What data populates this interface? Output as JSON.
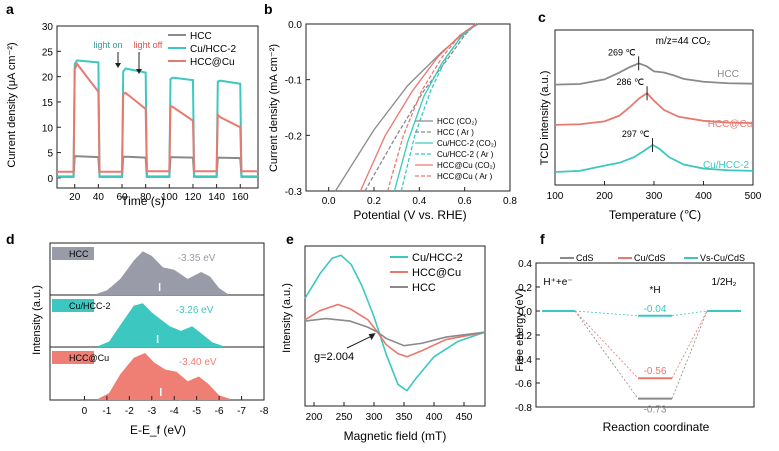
{
  "colors": {
    "gray": "#8a8a8a",
    "cyan": "#3cc8c0",
    "red": "#e8796f",
    "dos_gray": "#9a9ba8",
    "dos_cyan": "#3cc8c0",
    "dos_red": "#ef7e74"
  },
  "chart_data": [
    {
      "id": "a",
      "panel_label": "a",
      "type": "line",
      "title": "",
      "xlabel": "Time (s)",
      "ylabel": "Current density (μA cm⁻²)",
      "xlim": [
        5,
        175
      ],
      "ylim": [
        -2,
        30
      ],
      "xticks": [
        "20",
        "40",
        "60",
        "80",
        "100",
        "120",
        "140",
        "160"
      ],
      "yticks": [
        "0",
        "5",
        "10",
        "15",
        "20",
        "25",
        "30"
      ],
      "annotations": [
        "light on",
        "light off"
      ],
      "series": [
        {
          "name": "HCC",
          "color_key": "gray",
          "x": [
            5,
            19,
            20,
            40,
            41,
            60,
            61,
            80,
            81,
            100,
            101,
            120,
            121,
            140,
            141,
            160,
            161,
            175
          ],
          "y": [
            0.2,
            0.2,
            4.3,
            4.1,
            0.2,
            0.2,
            4.2,
            4.0,
            0.2,
            0.2,
            4.1,
            4.0,
            0.2,
            0.2,
            4.0,
            3.9,
            0.2,
            0.2
          ]
        },
        {
          "name": "Cu/HCC-2",
          "color_key": "cyan",
          "x": [
            5,
            19,
            20,
            22,
            40,
            41,
            60,
            61,
            63,
            80,
            81,
            100,
            101,
            103,
            120,
            121,
            140,
            141,
            143,
            160,
            161,
            175
          ],
          "y": [
            0.3,
            0.3,
            22.5,
            23.2,
            22.8,
            0.3,
            0.3,
            21.0,
            21.6,
            20.8,
            0.3,
            0.3,
            19.5,
            19.8,
            19.3,
            0.3,
            0.3,
            19.0,
            19.2,
            18.6,
            0.3,
            0.3
          ]
        },
        {
          "name": "HCC@Cu",
          "color_key": "red",
          "x": [
            5,
            19,
            20,
            22,
            40,
            41,
            60,
            61,
            63,
            80,
            81,
            100,
            101,
            103,
            120,
            121,
            140,
            141,
            143,
            160,
            161,
            175
          ],
          "y": [
            1.2,
            1.2,
            21.5,
            22.5,
            17.0,
            1.2,
            1.2,
            16.5,
            16.8,
            13.6,
            1.3,
            1.3,
            14.2,
            14.0,
            11.3,
            1.3,
            1.3,
            12.5,
            12.0,
            10.0,
            1.3,
            1.3
          ]
        }
      ]
    },
    {
      "id": "b",
      "panel_label": "b",
      "type": "line",
      "title": "",
      "xlabel": "Potential (V vs. RHE)",
      "ylabel": "Current density (mA cm⁻²)",
      "xlim": [
        -0.1,
        0.8
      ],
      "ylim": [
        -0.3,
        0.0
      ],
      "xticks": [
        "0.0",
        "0.2",
        "0.4",
        "0.6",
        "0.8"
      ],
      "yticks": [
        "0.0",
        "-0.1",
        "-0.2",
        "-0.3"
      ],
      "series": [
        {
          "name": "HCC (CO₂)",
          "color_key": "gray",
          "dashed": false,
          "x": [
            0.03,
            0.2,
            0.35,
            0.5,
            0.6,
            0.66
          ],
          "y": [
            -0.3,
            -0.19,
            -0.11,
            -0.05,
            -0.015,
            0.0
          ]
        },
        {
          "name": "HCC ( Ar )",
          "color_key": "gray",
          "dashed": true,
          "x": [
            0.16,
            0.3,
            0.42,
            0.53,
            0.6,
            0.65
          ],
          "y": [
            -0.3,
            -0.2,
            -0.12,
            -0.06,
            -0.02,
            0.0
          ]
        },
        {
          "name": "Cu/HCC-2 (CO₂)",
          "color_key": "cyan",
          "dashed": false,
          "x": [
            0.29,
            0.35,
            0.42,
            0.5,
            0.58,
            0.65
          ],
          "y": [
            -0.3,
            -0.21,
            -0.13,
            -0.07,
            -0.025,
            0.0
          ]
        },
        {
          "name": "Cu/HCC-2 ( Ar )",
          "color_key": "cyan",
          "dashed": true,
          "x": [
            0.32,
            0.38,
            0.45,
            0.52,
            0.59,
            0.65
          ],
          "y": [
            -0.3,
            -0.2,
            -0.12,
            -0.06,
            -0.02,
            0.0
          ]
        },
        {
          "name": "HCC@Cu (CO₂)",
          "color_key": "red",
          "dashed": false,
          "x": [
            0.14,
            0.25,
            0.37,
            0.48,
            0.58,
            0.65
          ],
          "y": [
            -0.3,
            -0.2,
            -0.12,
            -0.06,
            -0.02,
            0.0
          ]
        },
        {
          "name": "HCC@Cu ( Ar )",
          "color_key": "red",
          "dashed": true,
          "x": [
            0.26,
            0.33,
            0.41,
            0.5,
            0.58,
            0.65
          ],
          "y": [
            -0.3,
            -0.2,
            -0.12,
            -0.06,
            -0.02,
            0.0
          ]
        }
      ]
    },
    {
      "id": "c",
      "panel_label": "c",
      "type": "line",
      "title": "m/z=44 CO₂",
      "xlabel": "Temperature (℃)",
      "ylabel": "TCD intensity (a.u.)",
      "xlim": [
        100,
        500
      ],
      "xticks": [
        "100",
        "200",
        "300",
        "400",
        "500"
      ],
      "series": [
        {
          "name": "HCC",
          "color_key": "gray",
          "offset": 7.6,
          "peak_label": "269 ℃",
          "x": [
            100,
            150,
            200,
            230,
            250,
            269,
            285,
            300,
            320,
            340,
            360,
            400,
            450,
            500
          ],
          "y": [
            0.0,
            0.05,
            0.45,
            1.05,
            1.5,
            1.85,
            1.6,
            1.15,
            1.05,
            0.8,
            0.5,
            0.25,
            0.12,
            0.08
          ]
        },
        {
          "name": "HCC@Cu",
          "color_key": "red",
          "offset": 4.1,
          "peak_label": "286 ℃",
          "x": [
            100,
            150,
            200,
            230,
            250,
            270,
            286,
            300,
            320,
            350,
            400,
            450,
            500
          ],
          "y": [
            0.0,
            0.05,
            0.3,
            0.8,
            1.5,
            2.3,
            2.75,
            2.1,
            1.3,
            0.7,
            0.35,
            0.2,
            0.15
          ]
        },
        {
          "name": "Cu/HCC-2",
          "color_key": "cyan",
          "offset": 0.0,
          "peak_label": "297 ℃",
          "x": [
            100,
            150,
            200,
            230,
            260,
            280,
            297,
            310,
            330,
            360,
            400,
            450,
            500
          ],
          "y": [
            0.0,
            0.1,
            0.55,
            0.8,
            1.3,
            1.85,
            2.35,
            2.05,
            1.3,
            0.65,
            0.3,
            0.15,
            0.1
          ]
        }
      ]
    },
    {
      "id": "d",
      "panel_label": "d",
      "type": "area",
      "title": "",
      "xlabel": "E-E_f (eV)",
      "ylabel": "Intensity (a.u.)",
      "xlim": [
        1,
        -8
      ],
      "xticks": [
        "0",
        "-1",
        "-2",
        "-3",
        "-4",
        "-5",
        "-6",
        "-7",
        "-8"
      ],
      "series": [
        {
          "name": "HCC",
          "color_key": "dos_gray",
          "d_band_center": "-3.35 eV",
          "center_value": -3.35,
          "x": [
            -0.5,
            -1.0,
            -1.6,
            -2.2,
            -2.6,
            -3.0,
            -3.5,
            -4.0,
            -4.6,
            -5.2,
            -5.6,
            -6.0,
            -6.4
          ],
          "y": [
            0.02,
            0.1,
            0.35,
            0.75,
            0.95,
            0.85,
            0.6,
            0.55,
            0.35,
            0.5,
            0.4,
            0.15,
            0.02
          ]
        },
        {
          "name": "Cu/HCC-2",
          "color_key": "dos_cyan",
          "d_band_center": "-3.26 eV",
          "center_value": -3.26,
          "x": [
            -0.6,
            -1.1,
            -1.7,
            -2.2,
            -2.6,
            -3.0,
            -3.4,
            -3.8,
            -4.3,
            -4.8,
            -5.2,
            -5.7,
            -6.2
          ],
          "y": [
            0.02,
            0.12,
            0.55,
            0.9,
            0.95,
            0.75,
            0.6,
            0.45,
            0.35,
            0.45,
            0.3,
            0.1,
            0.02
          ]
        },
        {
          "name": "HCC@Cu",
          "color_key": "dos_red",
          "d_band_center": "-3.40 eV",
          "center_value": -3.4,
          "x": [
            -0.6,
            -1.1,
            -1.6,
            -2.2,
            -2.7,
            -3.1,
            -3.6,
            -4.1,
            -4.6,
            -5.1,
            -5.5,
            -6.0,
            -6.5
          ],
          "y": [
            0.02,
            0.15,
            0.55,
            0.9,
            1.0,
            0.8,
            0.65,
            0.6,
            0.4,
            0.5,
            0.35,
            0.1,
            0.02
          ]
        }
      ]
    },
    {
      "id": "e",
      "panel_label": "e",
      "type": "line",
      "title": "",
      "xlabel": "Magnetic field (mT)",
      "ylabel": "Intensity (a.u.)",
      "xlim": [
        185,
        485
      ],
      "ylim": [
        -1.2,
        1.4
      ],
      "xticks": [
        "200",
        "250",
        "300",
        "350",
        "400",
        "450"
      ],
      "annotation": "g=2.004",
      "annotation_point": {
        "x": 306,
        "y": 0.0
      },
      "series": [
        {
          "name": "Cu/HCC-2",
          "color_key": "cyan",
          "x": [
            185,
            210,
            230,
            245,
            262,
            280,
            300,
            320,
            340,
            355,
            370,
            400,
            440,
            485
          ],
          "y": [
            0.55,
            0.95,
            1.2,
            1.25,
            1.1,
            0.75,
            0.25,
            -0.35,
            -0.85,
            -0.95,
            -0.75,
            -0.4,
            -0.15,
            0.0
          ]
        },
        {
          "name": "HCC@Cu",
          "color_key": "red",
          "x": [
            185,
            210,
            240,
            260,
            290,
            306,
            320,
            340,
            355,
            380,
            420,
            485
          ],
          "y": [
            0.2,
            0.35,
            0.45,
            0.38,
            0.2,
            0.0,
            -0.2,
            -0.35,
            -0.4,
            -0.3,
            -0.12,
            0.0
          ]
        },
        {
          "name": "HCC",
          "color_key": "gray",
          "x": [
            185,
            220,
            260,
            290,
            306,
            320,
            350,
            380,
            420,
            485
          ],
          "y": [
            0.18,
            0.22,
            0.18,
            0.08,
            0.0,
            -0.1,
            -0.22,
            -0.18,
            -0.08,
            0.0
          ]
        }
      ]
    },
    {
      "id": "f",
      "panel_label": "f",
      "type": "line",
      "title": "",
      "xlabel": "Reaction coordinate",
      "ylabel": "Free energy (eV)",
      "ylim": [
        -0.8,
        0.4
      ],
      "yticks": [
        "0.4",
        "0.2",
        "0.0",
        "-0.2",
        "-0.4",
        "-0.6",
        "-0.8"
      ],
      "states": [
        "H⁺+e⁻",
        "*H",
        "1/2H₂"
      ],
      "series": [
        {
          "name": "CdS",
          "color_key": "gray",
          "values": [
            0.0,
            -0.73,
            0.0
          ],
          "label": "-0.73"
        },
        {
          "name": "Cu/CdS",
          "color_key": "red",
          "values": [
            0.0,
            -0.56,
            0.0
          ],
          "label": "-0.56"
        },
        {
          "name": "Vs-Cu/CdS",
          "color_key": "cyan",
          "values": [
            0.0,
            -0.04,
            0.0
          ],
          "label": "-0.04"
        }
      ]
    }
  ]
}
